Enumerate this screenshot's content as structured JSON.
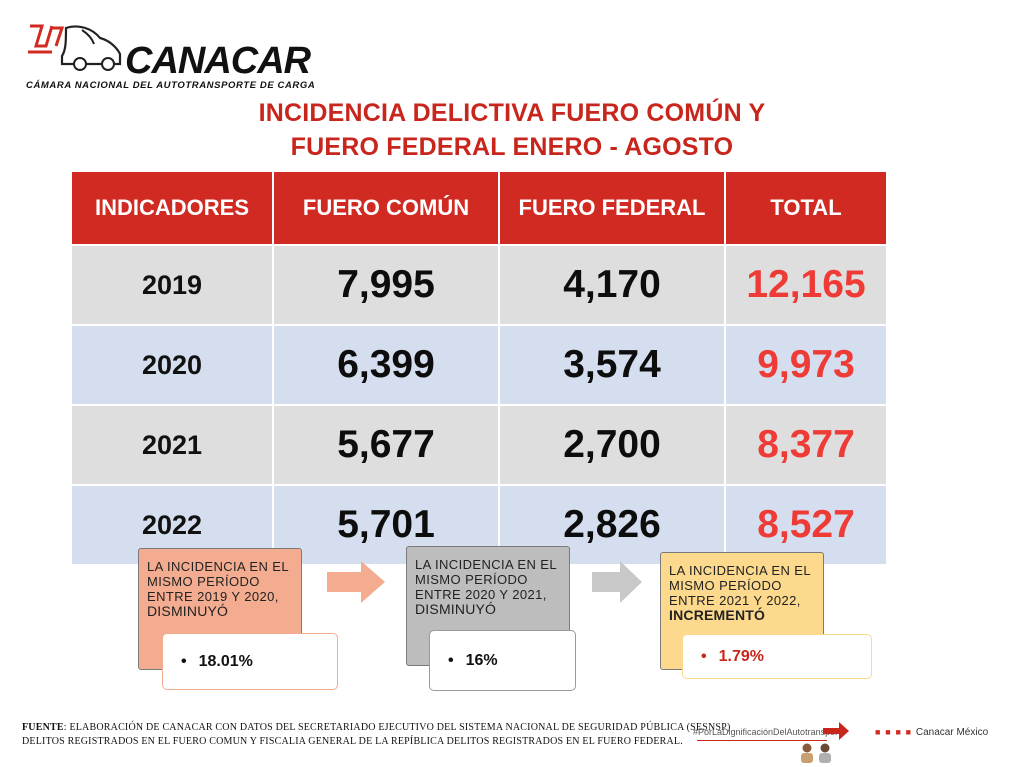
{
  "logo": {
    "name": "CANACAR",
    "subtitle": "CÁMARA NACIONAL DEL AUTOTRANSPORTE DE CARGA"
  },
  "title": {
    "line1": "INCIDENCIA DELICTIVA FUERO COMÚN Y",
    "line2": "FUERO FEDERAL ENERO - AGOSTO"
  },
  "table": {
    "headers": [
      "INDICADORES",
      "FUERO COMÚN",
      "FUERO FEDERAL",
      "TOTAL"
    ],
    "rows": [
      {
        "year": "2019",
        "comun": "7,995",
        "federal": "4,170",
        "total": "12,165"
      },
      {
        "year": "2020",
        "comun": "6,399",
        "federal": "3,574",
        "total": "9,973"
      },
      {
        "year": "2021",
        "comun": "5,677",
        "federal": "2,700",
        "total": "8,377"
      },
      {
        "year": "2022",
        "comun": "5,701",
        "federal": "2,826",
        "total": "8,527"
      }
    ]
  },
  "notes": [
    {
      "text": "LA INCIDENCIA EN EL MISMO PERÍODO ENTRE 2019 Y 2020,",
      "word": "DISMINUYÓ",
      "value": "18.01%",
      "color": "#f4ac90"
    },
    {
      "text": "LA INCIDENCIA EN EL MISMO PERÍODO ENTRE 2020 Y 2021,",
      "word": "DISMINUYÓ",
      "value": "16%",
      "color": "#bdbdbd"
    },
    {
      "text": "LA INCIDENCIA EN EL MISMO PERÍODO ENTRE 2021 Y 2022,",
      "word": "INCREMENTÓ",
      "value": "1.79%",
      "color": "#fcd98c"
    }
  ],
  "footer": {
    "label": "FUENTE",
    "line1": ": ELABORACIÓN DE CANACAR CON DATOS DEL SECRETARIADO EJECUTIVO DEL SISTEMA NACIONAL DE SEGURIDAD PÚBLICA (SESNSP)",
    "line2": "DELITOS REGISTRADOS EN EL FUERO COMUN Y FISCALIA GENERAL DE LA REPÍBLICA DELITOS REGISTRADOS EN EL FUERO FEDERAL."
  },
  "hashtag": "#PorLaDignificaciónDelAutotransporte",
  "social": {
    "handle": "Canacar México"
  },
  "colors": {
    "red": "#d02a22",
    "total_red": "#ef3b36"
  }
}
